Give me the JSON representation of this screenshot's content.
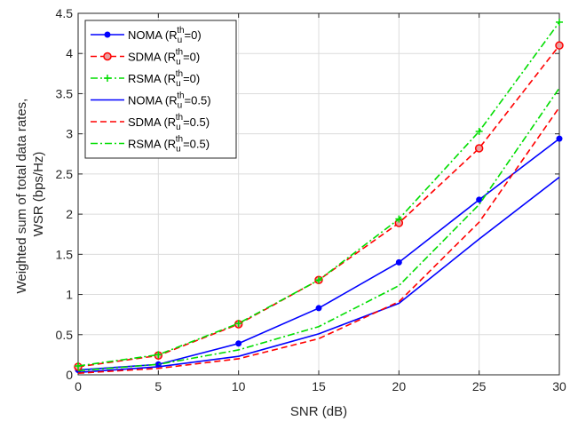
{
  "chart_data": {
    "type": "line",
    "title": "",
    "xlabel": "SNR (dB)",
    "ylabel_lines": [
      "Weighted sum of total data rates,",
      "WSR (bps/Hz)"
    ],
    "xlim": [
      0,
      30
    ],
    "ylim": [
      0,
      4.5
    ],
    "xticks": [
      "0",
      "5",
      "10",
      "15",
      "20",
      "25",
      "30"
    ],
    "yticks": [
      "0",
      "0.5",
      "1",
      "1.5",
      "2",
      "2.5",
      "3",
      "3.5",
      "4",
      "4.5"
    ],
    "grid": true,
    "legend_position": "top-left",
    "x": [
      0,
      5,
      10,
      15,
      20,
      25,
      30
    ],
    "series": [
      {
        "name": "NOMA (R_u^th=0)",
        "legend": {
          "pre": "NOMA (R",
          "sub": "u",
          "sup": "th",
          "post": "=0)"
        },
        "color": "#0000ff",
        "dash": "solid",
        "marker": "dot",
        "values": [
          0.06,
          0.13,
          0.39,
          0.83,
          1.4,
          2.18,
          2.94
        ]
      },
      {
        "name": "SDMA (R_u^th=0)",
        "legend": {
          "pre": "SDMA (R",
          "sub": "u",
          "sup": "th",
          "post": "=0)"
        },
        "color": "#ff0000",
        "dash": "dashed",
        "marker": "circle",
        "values": [
          0.1,
          0.24,
          0.63,
          1.18,
          1.89,
          2.82,
          4.1
        ]
      },
      {
        "name": "RSMA (R_u^th=0)",
        "legend": {
          "pre": "RSMA (R",
          "sub": "u",
          "sup": "th",
          "post": "=0)"
        },
        "color": "#00dd00",
        "dash": "dashdot",
        "marker": "plus",
        "values": [
          0.11,
          0.25,
          0.64,
          1.18,
          1.94,
          3.03,
          4.39
        ]
      },
      {
        "name": "NOMA (R_u^th=0.5)",
        "legend": {
          "pre": "NOMA (R",
          "sub": "u",
          "sup": "th",
          "post": "=0.5)"
        },
        "color": "#0000ff",
        "dash": "solid",
        "marker": "none",
        "values": [
          0.03,
          0.1,
          0.23,
          0.51,
          0.89,
          1.69,
          2.46
        ]
      },
      {
        "name": "SDMA (R_u^th=0.5)",
        "legend": {
          "pre": "SDMA (R",
          "sub": "u",
          "sup": "th",
          "post": "=0.5)"
        },
        "color": "#ff0000",
        "dash": "dashed",
        "marker": "none",
        "values": [
          0.02,
          0.08,
          0.2,
          0.45,
          0.91,
          1.9,
          3.33
        ]
      },
      {
        "name": "RSMA (R_u^th=0.5)",
        "legend": {
          "pre": "RSMA (R",
          "sub": "u",
          "sup": "th",
          "post": "=0.5)"
        },
        "color": "#00dd00",
        "dash": "dashdot",
        "marker": "none",
        "values": [
          0.05,
          0.13,
          0.31,
          0.6,
          1.11,
          2.12,
          3.57
        ]
      }
    ]
  }
}
